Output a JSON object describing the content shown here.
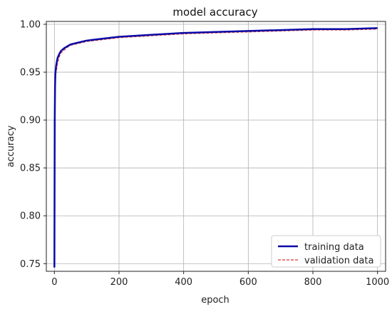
{
  "chart_data": {
    "type": "line",
    "title": "model accuracy",
    "xlabel": "epoch",
    "ylabel": "accuracy",
    "xlim": [
      -25,
      1025
    ],
    "ylim": [
      0.742,
      1.003
    ],
    "xticks": [
      0,
      200,
      400,
      600,
      800,
      1000
    ],
    "yticks": [
      0.75,
      0.8,
      0.85,
      0.9,
      0.95,
      1.0
    ],
    "xtick_labels": [
      "0",
      "200",
      "400",
      "600",
      "800",
      "1000"
    ],
    "ytick_labels": [
      "0.75",
      "0.80",
      "0.85",
      "0.90",
      "0.95",
      "1.00"
    ],
    "grid": true,
    "legend_position": "bottom-right",
    "series": [
      {
        "name": "training data",
        "color": "#0a0aa8",
        "style": "solid",
        "x": [
          0,
          1,
          2,
          3,
          5,
          8,
          10,
          15,
          20,
          30,
          40,
          50,
          75,
          100,
          150,
          200,
          250,
          300,
          400,
          500,
          600,
          700,
          800,
          900,
          1000
        ],
        "y": [
          0.746,
          0.9,
          0.935,
          0.948,
          0.956,
          0.962,
          0.965,
          0.969,
          0.972,
          0.975,
          0.977,
          0.979,
          0.981,
          0.983,
          0.985,
          0.987,
          0.988,
          0.989,
          0.991,
          0.992,
          0.993,
          0.994,
          0.995,
          0.995,
          0.996
        ]
      },
      {
        "name": "validation data",
        "color": "#e0342a",
        "style": "dashed",
        "x": [
          0,
          1,
          2,
          3,
          5,
          8,
          10,
          15,
          20,
          30,
          40,
          50,
          75,
          100,
          150,
          200,
          250,
          300,
          400,
          500,
          600,
          700,
          800,
          900,
          1000
        ],
        "y": [
          0.8,
          0.91,
          0.93,
          0.94,
          0.95,
          0.955,
          0.96,
          0.966,
          0.97,
          0.973,
          0.976,
          0.978,
          0.98,
          0.982,
          0.984,
          0.986,
          0.987,
          0.988,
          0.99,
          0.991,
          0.992,
          0.993,
          0.994,
          0.994,
          0.995
        ]
      }
    ]
  }
}
